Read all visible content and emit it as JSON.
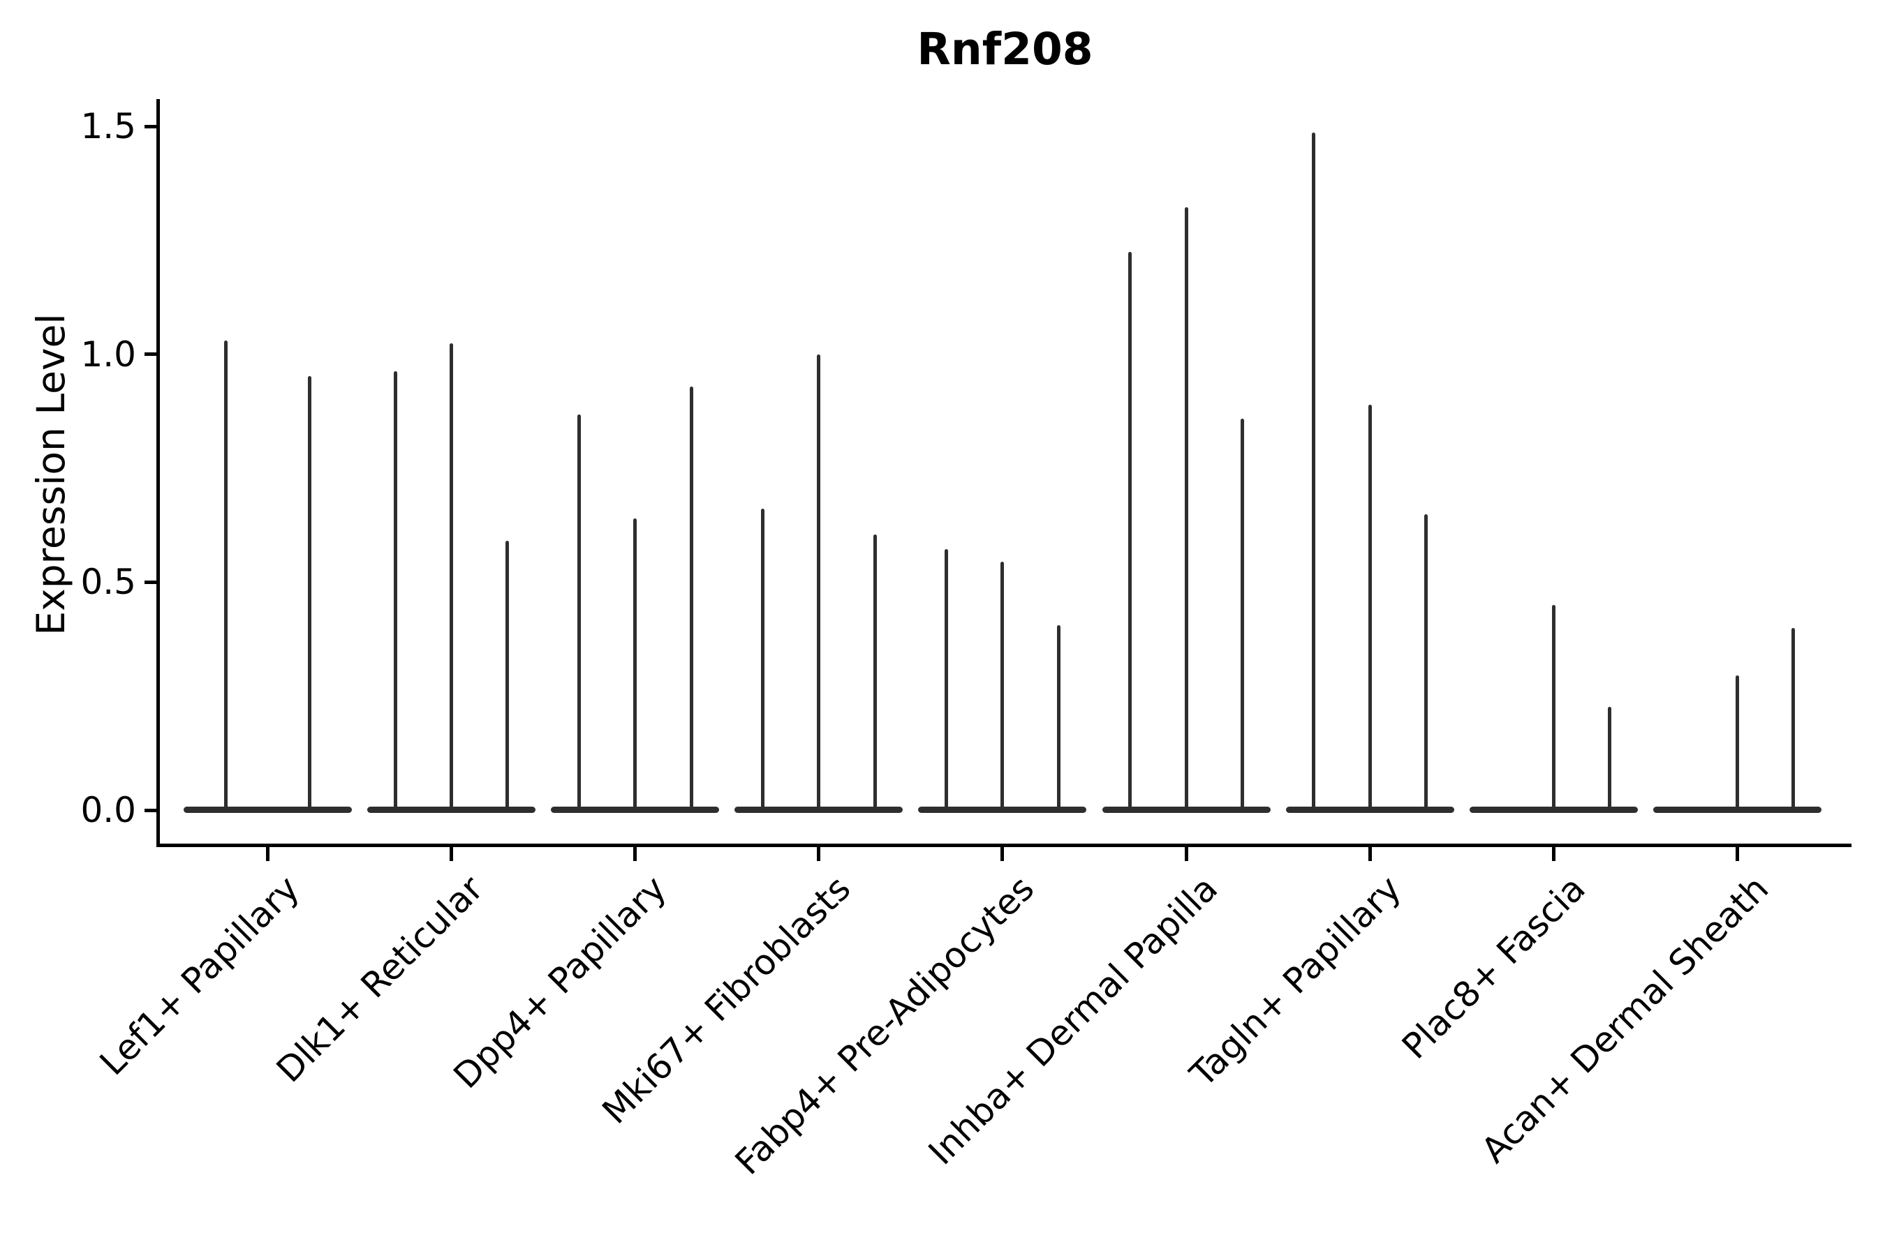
{
  "chart_data": {
    "type": "violin",
    "title": "Rnf208",
    "ylabel": "Expression Level",
    "xlabel": "",
    "grid": false,
    "legend": "none",
    "ylim": [
      -0.07,
      1.56
    ],
    "yticks": [
      {
        "value": 0.0,
        "label": "0.0"
      },
      {
        "value": 0.5,
        "label": "0.5"
      },
      {
        "value": 1.0,
        "label": "1.0"
      },
      {
        "value": 1.5,
        "label": "1.5"
      }
    ],
    "violin_color": "#2e2e2e",
    "axis_color": "#000000",
    "note": "Needle-thin violins; each category holds 2-3 violins whose peaks reach the listed max expression values; 0 means a flat violin at baseline with no needle.",
    "groups": [
      {
        "label": "Lef1+ Papillary",
        "violins": [
          1.03,
          0.952
        ]
      },
      {
        "label": "Dlk1+ Reticular",
        "violins": [
          0.963,
          1.024,
          0.591
        ]
      },
      {
        "label": "Dpp4+ Papillary",
        "violins": [
          0.868,
          0.64,
          0.929
        ]
      },
      {
        "label": "Mki67+ Fibroblasts",
        "violins": [
          0.661,
          0.999,
          0.604
        ]
      },
      {
        "label": "Fabp4+ Pre-Adipocytes",
        "violins": [
          0.573,
          0.545,
          0.406
        ]
      },
      {
        "label": "Inhba+ Dermal Papilla",
        "violins": [
          1.225,
          1.323,
          0.858
        ]
      },
      {
        "label": "Tagln+ Papillary",
        "violins": [
          1.486,
          0.889,
          0.649
        ]
      },
      {
        "label": "Plac8+ Fascia",
        "violins": [
          0.0,
          0.45,
          0.226
        ]
      },
      {
        "label": "Acan+ Dermal Sheath",
        "violins": [
          0.0,
          0.295,
          0.4
        ]
      }
    ]
  }
}
